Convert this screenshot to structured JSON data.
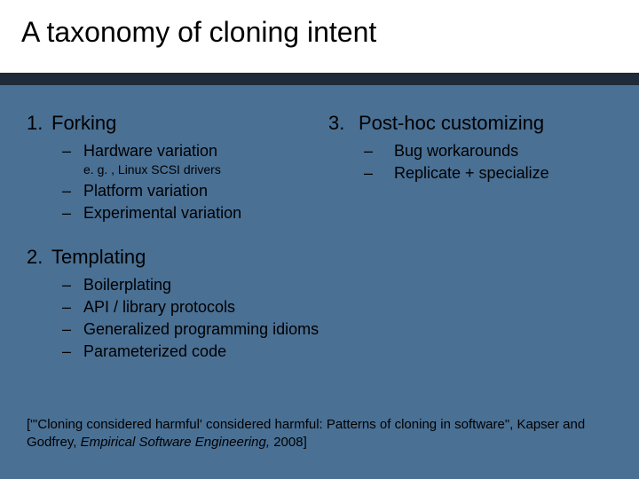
{
  "colors": {
    "background": "#4a7094",
    "title_band_bg": "#ffffff",
    "dark_strip": "#1f2a3a",
    "text": "#000000"
  },
  "typography": {
    "title_fontsize": 32,
    "item_fontsize": 22,
    "subitem_fontsize": 18,
    "eg_fontsize": 14,
    "citation_fontsize": 15,
    "font_family": "Arial"
  },
  "title": "A taxonomy of cloning intent",
  "left": {
    "item1": {
      "num": "1.",
      "label": "Forking",
      "sub1": "Hardware variation",
      "eg": "e. g. , Linux SCSI drivers",
      "sub2": "Platform variation",
      "sub3": "Experimental variation"
    },
    "item2": {
      "num": "2.",
      "label": "Templating",
      "sub1": "Boilerplating",
      "sub2": "API / library protocols",
      "sub3": "Generalized programming idioms",
      "sub4": "Parameterized code"
    }
  },
  "right": {
    "item3": {
      "num": "3.",
      "label": "Post-hoc customizing",
      "sub1": "Bug workarounds",
      "sub2": "Replicate + specialize"
    }
  },
  "dash": "–",
  "citation": {
    "pre": "[\"'Cloning considered harmful' considered harmful: Patterns of cloning in software\", Kapser and Godfrey, ",
    "ital": "Empirical Software Engineering, ",
    "post": "2008]"
  }
}
